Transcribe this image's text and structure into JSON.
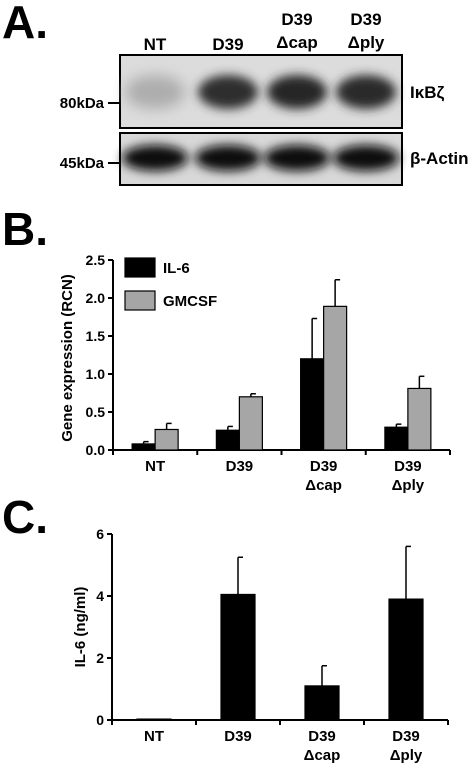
{
  "panels": {
    "a": "A.",
    "b": "B.",
    "c": "C."
  },
  "blot": {
    "lanes": [
      {
        "line1": "",
        "line2": "NT"
      },
      {
        "line1": "",
        "line2": "D39"
      },
      {
        "line1": "D39",
        "line2": "Δcap"
      },
      {
        "line1": "D39",
        "line2": "Δply"
      }
    ],
    "top_band": {
      "label": "IκBζ",
      "marker": "80kDa"
    },
    "bottom_band": {
      "label": "β-Actin",
      "marker": "45kDa"
    },
    "top_intensity": [
      0.15,
      0.85,
      0.9,
      0.88
    ],
    "bottom_intensity": [
      1.0,
      1.0,
      1.0,
      1.0
    ]
  },
  "chart_data": [
    {
      "type": "bar",
      "panel": "B.",
      "ylabel": "Gene expression (RCN)",
      "xlabel": "",
      "ylim": [
        0,
        2.5
      ],
      "yticks": [
        "0.0",
        "0.5",
        "1.0",
        "1.5",
        "2.0",
        "2.5"
      ],
      "categories": [
        {
          "line1": "NT",
          "line2": ""
        },
        {
          "line1": "D39",
          "line2": ""
        },
        {
          "line1": "D39",
          "line2": "Δcap"
        },
        {
          "line1": "D39",
          "line2": "Δply"
        }
      ],
      "series": [
        {
          "name": "IL-6",
          "color": "#000000",
          "values": [
            0.08,
            0.26,
            1.2,
            0.3
          ],
          "errors": [
            0.03,
            0.05,
            0.53,
            0.04
          ]
        },
        {
          "name": "GMCSF",
          "color": "#a6a6a6",
          "values": [
            0.27,
            0.7,
            1.89,
            0.81
          ],
          "errors": [
            0.08,
            0.04,
            0.35,
            0.16
          ]
        }
      ],
      "legend": "top-left"
    },
    {
      "type": "bar",
      "panel": "C.",
      "ylabel": "IL-6 (ng/ml)",
      "xlabel": "",
      "ylim": [
        0,
        6
      ],
      "yticks": [
        "0",
        "2",
        "4",
        "6"
      ],
      "categories": [
        {
          "line1": "NT",
          "line2": ""
        },
        {
          "line1": "D39",
          "line2": ""
        },
        {
          "line1": "D39",
          "line2": "Δcap"
        },
        {
          "line1": "D39",
          "line2": "Δply"
        }
      ],
      "series": [
        {
          "name": "",
          "color": "#000000",
          "values": [
            0.03,
            4.05,
            1.1,
            3.9
          ],
          "errors": [
            0.0,
            1.2,
            0.65,
            1.7
          ]
        }
      ]
    }
  ]
}
